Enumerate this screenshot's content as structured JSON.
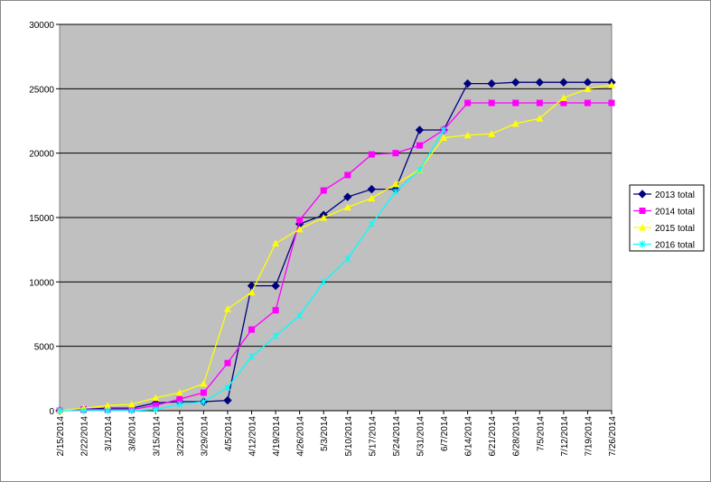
{
  "chart_data": {
    "type": "line",
    "categories": [
      "2/15/2014",
      "2/22/2014",
      "3/1/2014",
      "3/8/2014",
      "3/15/2014",
      "3/22/2014",
      "3/29/2014",
      "4/5/2014",
      "4/12/2014",
      "4/19/2014",
      "4/26/2014",
      "5/3/2014",
      "5/10/2014",
      "5/17/2014",
      "5/24/2014",
      "5/31/2014",
      "6/7/2014",
      "6/14/2014",
      "6/21/2014",
      "6/28/2014",
      "7/5/2014",
      "7/12/2014",
      "7/19/2014",
      "7/26/2014"
    ],
    "series": [
      {
        "name": "2013 total",
        "color": "#000080",
        "marker": "diamond",
        "values": [
          0,
          100,
          200,
          200,
          600,
          700,
          700,
          800,
          9700,
          9700,
          14500,
          15200,
          16600,
          17200,
          17200,
          21800,
          21800,
          25400,
          25400,
          25500,
          25500,
          25500,
          25500,
          25500
        ]
      },
      {
        "name": "2014 total",
        "color": "#ff00ff",
        "marker": "square",
        "values": [
          0,
          100,
          100,
          100,
          400,
          900,
          1400,
          3700,
          6300,
          7800,
          14800,
          17100,
          18300,
          19900,
          20000,
          20600,
          21800,
          23900,
          23900,
          23900,
          23900,
          23900,
          23900,
          23900
        ]
      },
      {
        "name": "2015 total",
        "color": "#ffff00",
        "marker": "triangle",
        "values": [
          0,
          200,
          400,
          500,
          1000,
          1400,
          2100,
          7900,
          9200,
          13000,
          14100,
          15000,
          15800,
          16500,
          17600,
          18700,
          21200,
          21400,
          21500,
          22300,
          22700,
          24300,
          25000,
          25300
        ]
      },
      {
        "name": "2016 total",
        "color": "#00ffff",
        "marker": "x",
        "values": [
          0,
          0,
          0,
          0,
          100,
          500,
          700,
          1800,
          4200,
          5800,
          7400,
          10000,
          11800,
          14500,
          17000,
          18700,
          21800,
          null,
          null,
          null,
          null,
          null,
          null,
          null
        ]
      }
    ],
    "ylim": [
      0,
      30000
    ],
    "yticks": [
      0,
      5000,
      10000,
      15000,
      20000,
      25000,
      30000
    ],
    "grid": true,
    "legend": "right"
  }
}
